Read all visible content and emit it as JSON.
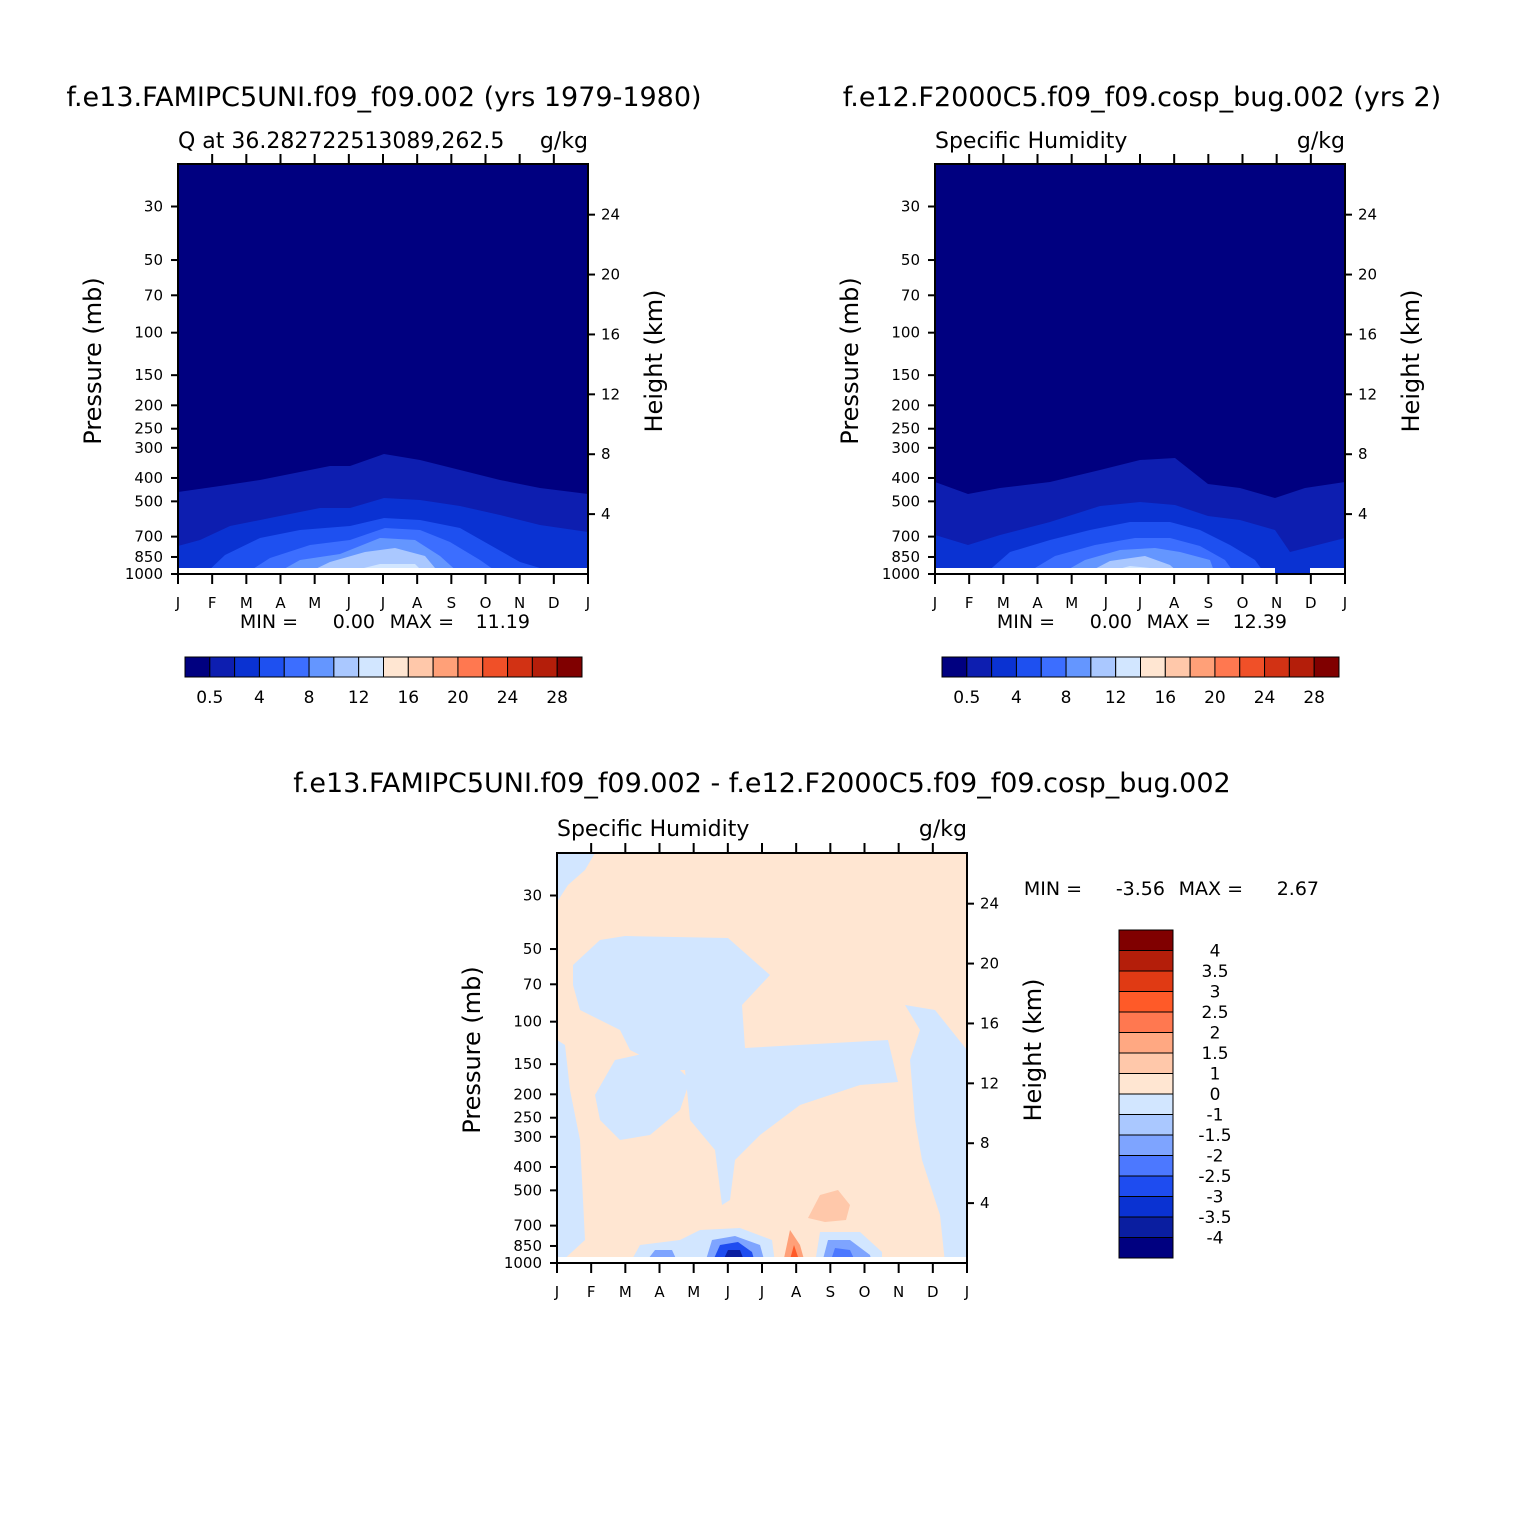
{
  "months": [
    "J",
    "F",
    "M",
    "A",
    "M",
    "J",
    "J",
    "A",
    "S",
    "O",
    "N",
    "D",
    "J"
  ],
  "pressure_ticks": [
    "30",
    "50",
    "70",
    "100",
    "150",
    "200",
    "250",
    "300",
    "400",
    "500",
    "700",
    "850",
    "1000"
  ],
  "height_ticks": [
    "24",
    "20",
    "16",
    "12",
    "8",
    "4"
  ],
  "left_axis_label": "Pressure (mb)",
  "right_axis_label": "Height (km)",
  "panels": [
    {
      "id": "case1",
      "header": "f.e13.FAMIPC5UNI.f09_f09.002 (yrs 1979-1980)",
      "subtitle": "Q at 36.282722513089,262.5",
      "units": "g/kg",
      "min_label": "MIN =",
      "min_value": "0.00",
      "max_label": "MAX =",
      "max_value": "11.19"
    },
    {
      "id": "case2",
      "header": "f.e12.F2000C5.f09_f09.cosp_bug.002 (yrs 2)",
      "subtitle": "Specific Humidity",
      "units": "g/kg",
      "min_label": "MIN =",
      "min_value": "0.00",
      "max_label": "MAX =",
      "max_value": "12.39"
    },
    {
      "id": "diff",
      "header": "f.e13.FAMIPC5UNI.f09_f09.002 - f.e12.F2000C5.f09_f09.cosp_bug.002",
      "subtitle": "Specific Humidity",
      "units": "g/kg",
      "min_label": "MIN =",
      "min_value": "-3.56",
      "max_label": "MAX =",
      "max_value": "2.67"
    }
  ],
  "colorbar_abs": {
    "labels": [
      "0.5",
      "4",
      "8",
      "12",
      "16",
      "20",
      "24",
      "28"
    ],
    "colors": [
      "#000080",
      "#0D1EB0",
      "#0A32D2",
      "#1E50F0",
      "#3C6EFF",
      "#6496FF",
      "#AAC8FF",
      "#D2E6FF",
      "#FFE6D2",
      "#FFC8AA",
      "#FFA078",
      "#FF7850",
      "#F05028",
      "#D23214",
      "#B41E0A",
      "#800000"
    ]
  },
  "colorbar_diff": {
    "labels": [
      "4",
      "3.5",
      "3",
      "2.5",
      "2",
      "1.5",
      "1",
      "0",
      "-1",
      "-1.5",
      "-2",
      "-2.5",
      "-3",
      "-3.5",
      "-4"
    ],
    "colors": [
      "#800000",
      "#B41E0A",
      "#E03A14",
      "#FF5A28",
      "#FF7850",
      "#FFA882",
      "#FFC8AA",
      "#FFE6D2",
      "#D2E6FF",
      "#AAC8FF",
      "#7EA4FF",
      "#4C78FF",
      "#1E4CF0",
      "#0A32D2",
      "#0A1EA0",
      "#000080"
    ]
  },
  "chart_data": [
    {
      "type": "heatmap",
      "title": "Q at 36.282722513089,262.5",
      "xlabel": "",
      "ylabel": "Pressure (mb)",
      "ylabel_right": "Height (km)",
      "x": [
        "J",
        "F",
        "M",
        "A",
        "M",
        "J",
        "J",
        "A",
        "S",
        "O",
        "N",
        "D",
        "J"
      ],
      "y_pressure": [
        30,
        50,
        70,
        100,
        150,
        200,
        250,
        300,
        400,
        500,
        700,
        850,
        1000
      ],
      "y_height": [
        24,
        20,
        16,
        12,
        8,
        4
      ],
      "z_min": 0.0,
      "z_max": 11.19,
      "units": "g/kg",
      "contour_levels": [
        0.5,
        2,
        4,
        6,
        8,
        10,
        12,
        14,
        16,
        18,
        20,
        22,
        24,
        26,
        28
      ]
    },
    {
      "type": "heatmap",
      "title": "Specific Humidity",
      "xlabel": "",
      "ylabel": "Pressure (mb)",
      "ylabel_right": "Height (km)",
      "x": [
        "J",
        "F",
        "M",
        "A",
        "M",
        "J",
        "J",
        "A",
        "S",
        "O",
        "N",
        "D",
        "J"
      ],
      "y_pressure": [
        30,
        50,
        70,
        100,
        150,
        200,
        250,
        300,
        400,
        500,
        700,
        850,
        1000
      ],
      "y_height": [
        24,
        20,
        16,
        12,
        8,
        4
      ],
      "z_min": 0.0,
      "z_max": 12.39,
      "units": "g/kg",
      "contour_levels": [
        0.5,
        2,
        4,
        6,
        8,
        10,
        12,
        14,
        16,
        18,
        20,
        22,
        24,
        26,
        28
      ]
    },
    {
      "type": "heatmap",
      "title": "Specific Humidity",
      "xlabel": "",
      "ylabel": "Pressure (mb)",
      "ylabel_right": "Height (km)",
      "x": [
        "J",
        "F",
        "M",
        "A",
        "M",
        "J",
        "J",
        "A",
        "S",
        "O",
        "N",
        "D",
        "J"
      ],
      "y_pressure": [
        30,
        50,
        70,
        100,
        150,
        200,
        250,
        300,
        400,
        500,
        700,
        850,
        1000
      ],
      "y_height": [
        24,
        20,
        16,
        12,
        8,
        4
      ],
      "z_min": -3.56,
      "z_max": 2.67,
      "units": "g/kg",
      "contour_levels": [
        -4,
        -3.5,
        -3,
        -2.5,
        -2,
        -1.5,
        -1,
        0,
        1,
        1.5,
        2,
        2.5,
        3,
        3.5,
        4
      ]
    }
  ]
}
